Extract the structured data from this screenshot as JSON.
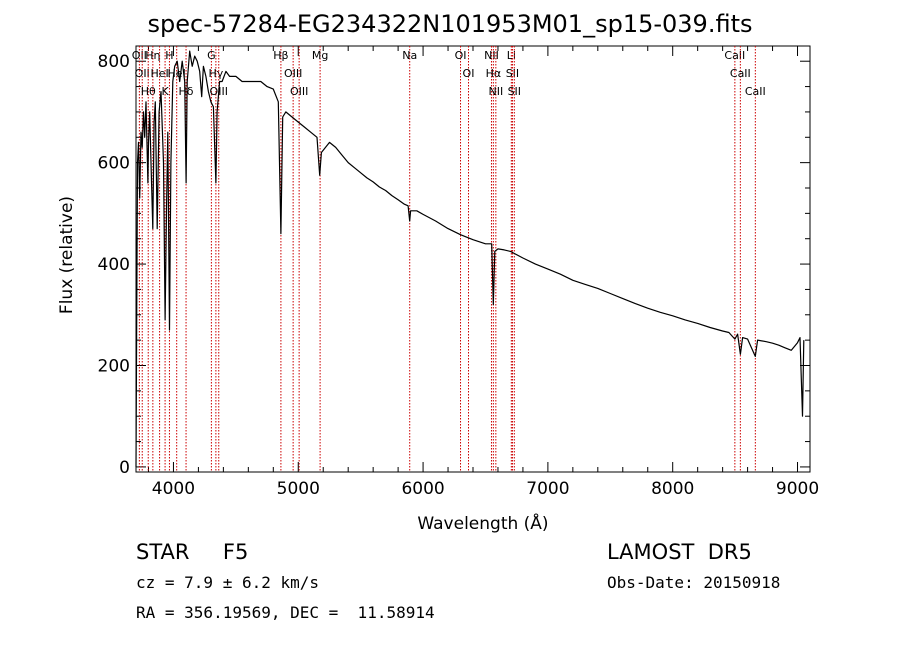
{
  "title": "spec-57284-EG234322N101953M01_sp15-039.fits",
  "info": {
    "object": "STAR     F5",
    "survey": "LAMOST  DR5",
    "cz": "cz = 7.9 ± 6.2 km/s",
    "obs_date": "Obs-Date: 20150918",
    "radec": "RA = 356.19569, DEC =  11.58914"
  },
  "chart_data": {
    "type": "line",
    "xlabel": "Wavelength (Å)",
    "ylabel": "Flux (relative)",
    "xlim": [
      3700,
      9100
    ],
    "ylim": [
      -10,
      830
    ],
    "xticks": [
      4000,
      5000,
      6000,
      7000,
      8000,
      9000
    ],
    "yticks": [
      0,
      200,
      400,
      600,
      800
    ],
    "grid": false,
    "series": [
      {
        "points": [
          [
            3700,
            0
          ],
          [
            3705,
            250
          ],
          [
            3712,
            600
          ],
          [
            3720,
            640
          ],
          [
            3730,
            530
          ],
          [
            3740,
            660
          ],
          [
            3750,
            630
          ],
          [
            3760,
            700
          ],
          [
            3770,
            650
          ],
          [
            3780,
            720
          ],
          [
            3795,
            560
          ],
          [
            3800,
            640
          ],
          [
            3810,
            700
          ],
          [
            3820,
            600
          ],
          [
            3835,
            470
          ],
          [
            3845,
            680
          ],
          [
            3855,
            720
          ],
          [
            3870,
            470
          ],
          [
            3885,
            700
          ],
          [
            3900,
            740
          ],
          [
            3920,
            600
          ],
          [
            3933,
            290
          ],
          [
            3945,
            520
          ],
          [
            3955,
            660
          ],
          [
            3968,
            270
          ],
          [
            3980,
            600
          ],
          [
            3995,
            760
          ],
          [
            4010,
            790
          ],
          [
            4030,
            800
          ],
          [
            4050,
            760
          ],
          [
            4070,
            800
          ],
          [
            4090,
            760
          ],
          [
            4101,
            560
          ],
          [
            4110,
            760
          ],
          [
            4130,
            820
          ],
          [
            4150,
            790
          ],
          [
            4170,
            810
          ],
          [
            4190,
            800
          ],
          [
            4210,
            780
          ],
          [
            4226,
            730
          ],
          [
            4240,
            790
          ],
          [
            4260,
            770
          ],
          [
            4280,
            740
          ],
          [
            4300,
            720
          ],
          [
            4320,
            710
          ],
          [
            4340,
            560
          ],
          [
            4350,
            700
          ],
          [
            4370,
            760
          ],
          [
            4390,
            760
          ],
          [
            4420,
            780
          ],
          [
            4450,
            770
          ],
          [
            4500,
            770
          ],
          [
            4550,
            760
          ],
          [
            4600,
            760
          ],
          [
            4650,
            760
          ],
          [
            4700,
            760
          ],
          [
            4750,
            750
          ],
          [
            4800,
            745
          ],
          [
            4840,
            720
          ],
          [
            4861,
            460
          ],
          [
            4875,
            690
          ],
          [
            4900,
            700
          ],
          [
            4950,
            690
          ],
          [
            5000,
            680
          ],
          [
            5050,
            670
          ],
          [
            5100,
            660
          ],
          [
            5150,
            650
          ],
          [
            5172,
            575
          ],
          [
            5185,
            620
          ],
          [
            5250,
            640
          ],
          [
            5300,
            630
          ],
          [
            5350,
            615
          ],
          [
            5400,
            600
          ],
          [
            5450,
            590
          ],
          [
            5500,
            580
          ],
          [
            5550,
            570
          ],
          [
            5600,
            562
          ],
          [
            5650,
            552
          ],
          [
            5700,
            545
          ],
          [
            5750,
            535
          ],
          [
            5800,
            527
          ],
          [
            5850,
            518
          ],
          [
            5880,
            515
          ],
          [
            5893,
            485
          ],
          [
            5900,
            505
          ],
          [
            5950,
            505
          ],
          [
            6000,
            498
          ],
          [
            6100,
            485
          ],
          [
            6200,
            470
          ],
          [
            6300,
            458
          ],
          [
            6400,
            448
          ],
          [
            6500,
            440
          ],
          [
            6550,
            440
          ],
          [
            6563,
            320
          ],
          [
            6575,
            425
          ],
          [
            6600,
            430
          ],
          [
            6650,
            428
          ],
          [
            6700,
            425
          ],
          [
            6800,
            412
          ],
          [
            6900,
            400
          ],
          [
            7000,
            390
          ],
          [
            7100,
            380
          ],
          [
            7200,
            368
          ],
          [
            7300,
            360
          ],
          [
            7400,
            352
          ],
          [
            7500,
            342
          ],
          [
            7600,
            332
          ],
          [
            7700,
            322
          ],
          [
            7800,
            313
          ],
          [
            7900,
            305
          ],
          [
            8000,
            298
          ],
          [
            8100,
            290
          ],
          [
            8200,
            283
          ],
          [
            8300,
            275
          ],
          [
            8400,
            268
          ],
          [
            8450,
            265
          ],
          [
            8498,
            252
          ],
          [
            8520,
            262
          ],
          [
            8542,
            222
          ],
          [
            8560,
            255
          ],
          [
            8600,
            252
          ],
          [
            8662,
            218
          ],
          [
            8680,
            250
          ],
          [
            8750,
            247
          ],
          [
            8800,
            244
          ],
          [
            8850,
            240
          ],
          [
            8900,
            235
          ],
          [
            8950,
            230
          ],
          [
            9000,
            245
          ],
          [
            9020,
            255
          ],
          [
            9040,
            100
          ],
          [
            9050,
            250
          ]
        ]
      }
    ],
    "line_markers": [
      {
        "wavelength": 3727,
        "label": "OII"
      },
      {
        "wavelength": 3750,
        "label": "OII"
      },
      {
        "wavelength": 3798,
        "label": "Hθ"
      },
      {
        "wavelength": 3835,
        "label": "Hη"
      },
      {
        "wavelength": 3889,
        "label": "HeI"
      },
      {
        "wavelength": 3933,
        "label": "K"
      },
      {
        "wavelength": 3968,
        "label": "H"
      },
      {
        "wavelength": 4026,
        "label": "HeI"
      },
      {
        "wavelength": 4101,
        "label": "Hδ"
      },
      {
        "wavelength": 4304,
        "label": "G"
      },
      {
        "wavelength": 4340,
        "label": "Hγ"
      },
      {
        "wavelength": 4363,
        "label": "OIII"
      },
      {
        "wavelength": 4861,
        "label": "Hβ"
      },
      {
        "wavelength": 4959,
        "label": "OIII"
      },
      {
        "wavelength": 5007,
        "label": "OIII"
      },
      {
        "wavelength": 5175,
        "label": "Mg"
      },
      {
        "wavelength": 5893,
        "label": "Na"
      },
      {
        "wavelength": 6300,
        "label": "OI"
      },
      {
        "wavelength": 6364,
        "label": "OI"
      },
      {
        "wavelength": 6548,
        "label": "NII"
      },
      {
        "wavelength": 6563,
        "label": "Hα"
      },
      {
        "wavelength": 6583,
        "label": "NII"
      },
      {
        "wavelength": 6707,
        "label": "Li"
      },
      {
        "wavelength": 6716,
        "label": "SII"
      },
      {
        "wavelength": 6731,
        "label": "SII"
      },
      {
        "wavelength": 8498,
        "label": "CaII"
      },
      {
        "wavelength": 8542,
        "label": "CaII"
      },
      {
        "wavelength": 8662,
        "label": "CaII"
      }
    ],
    "colors": {
      "spectrum": "#000000",
      "markers": "#cc0000",
      "axes": "#000000"
    }
  }
}
